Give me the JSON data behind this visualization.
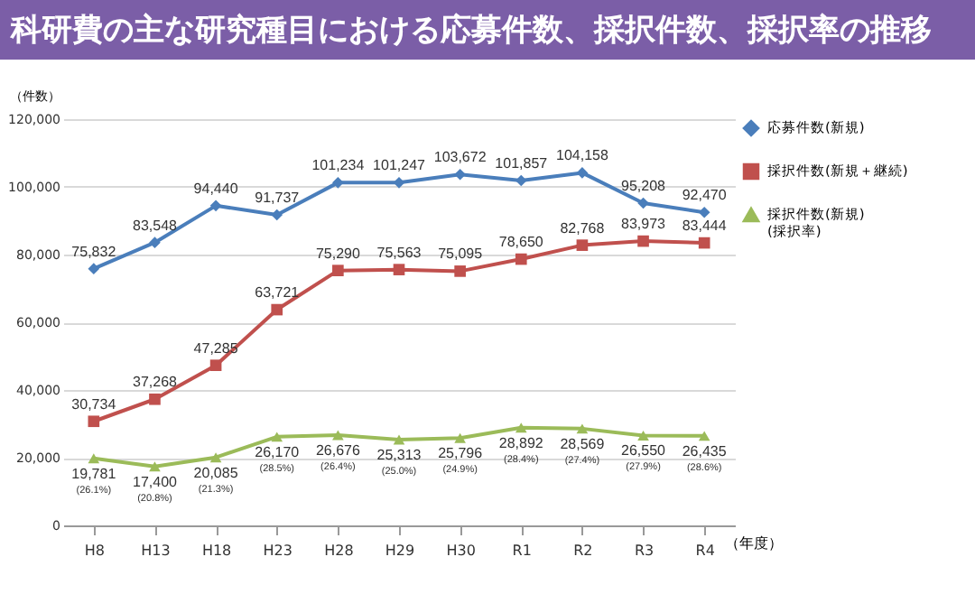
{
  "chart_data": {
    "type": "line",
    "title": "科研費の主な研究種目における応募件数、採択件数、採択率の推移",
    "ylabel": "（件数）",
    "xlabel": "（年度）",
    "categories": [
      "H8",
      "H13",
      "H18",
      "H23",
      "H28",
      "H29",
      "H30",
      "R1",
      "R2",
      "R3",
      "R4"
    ],
    "ylim": [
      0,
      120000
    ],
    "yticks": [
      0,
      {
        "value": 20000,
        "label": "20,000"
      },
      {
        "value": 40000,
        "label": "40,000"
      },
      {
        "value": 60000,
        "label": "60,000"
      },
      {
        "value": 80000,
        "label": "80,000"
      },
      {
        "value": 100000,
        "label": "100,000"
      },
      {
        "value": 120000,
        "label": "120,000"
      }
    ],
    "grid": "y",
    "legend": "right",
    "series": [
      {
        "name": "応募件数(新規)",
        "color": "#4a7ebb",
        "marker": "diamond",
        "values": [
          75832,
          83548,
          94440,
          91737,
          101234,
          101247,
          103672,
          101857,
          104158,
          95208,
          92470
        ],
        "value_labels": [
          "75,832",
          "83,548",
          "94,440",
          "91,737",
          "101,234",
          "101,247",
          "103,672",
          "101,857",
          "104,158",
          "95,208",
          "92,470"
        ]
      },
      {
        "name": "採択件数(新規＋継続)",
        "color": "#c0504d",
        "marker": "square",
        "values": [
          30734,
          37268,
          47285,
          63721,
          75290,
          75563,
          75095,
          78650,
          82768,
          83973,
          83444
        ],
        "value_labels": [
          "30,734",
          "37,268",
          "47,285",
          "63,721",
          "75,290",
          "75,563",
          "75,095",
          "78,650",
          "82,768",
          "83,973",
          "83,444"
        ]
      },
      {
        "name": "採択件数(新規)\n(採択率)",
        "color": "#9bbb59",
        "marker": "triangle",
        "values": [
          19781,
          17400,
          20085,
          26170,
          26676,
          25313,
          25796,
          28892,
          28569,
          26550,
          26435
        ],
        "value_labels": [
          "19,781\n(26.1%)",
          "17,400\n(20.8%)",
          "20,085\n(21.3%)",
          "26,170\n(28.5%)",
          "26,676\n(26.4%)",
          "25,313\n(25.0%)",
          "25,796\n(24.9%)",
          "28,892\n(28.4%)",
          "28,569\n(27.4%)",
          "26,550\n(27.9%)",
          "26,435\n(28.6%)"
        ]
      }
    ]
  }
}
